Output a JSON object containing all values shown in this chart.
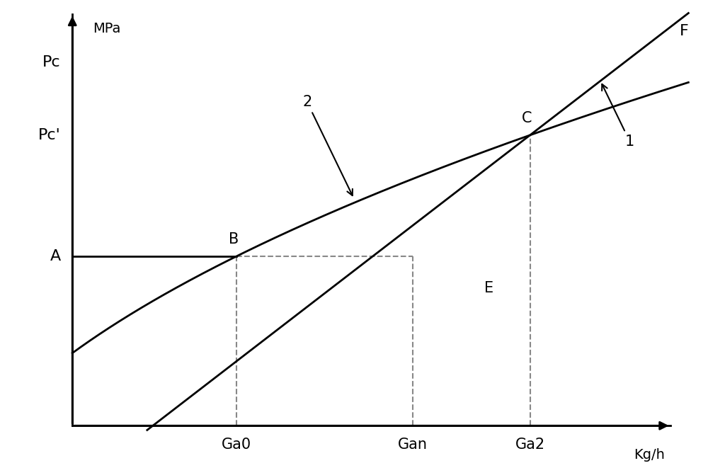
{
  "xlim": [
    0,
    10
  ],
  "ylim": [
    0,
    10
  ],
  "Ga0_x": 2.8,
  "Gan_x": 5.8,
  "Ga2_x": 7.8,
  "A_y": 4.2,
  "Pc_y": 9.0,
  "Pc_prime_y": 7.2,
  "line1_intercept": -1.5,
  "line1_slope": 1.12,
  "curve2_y0": 1.8,
  "curve2_pow": 0.55,
  "bg_color": "#ffffff",
  "line_color": "#000000",
  "dashed_color": "#888888",
  "font_size_labels": 15,
  "font_size_axis_labels": 14,
  "arrow_color": "#000000",
  "label_A": "A",
  "label_B": "B",
  "label_C": "C",
  "label_E": "E",
  "label_F": "F",
  "label_1": "1",
  "label_2": "2",
  "label_Pc": "Pc",
  "label_Pc_prime": "Pc'",
  "label_MPa": "MPa",
  "label_Kgh": "Kg/h",
  "label_Ga0": "Ga0",
  "label_Gan": "Gan",
  "label_Ga2": "Ga2"
}
